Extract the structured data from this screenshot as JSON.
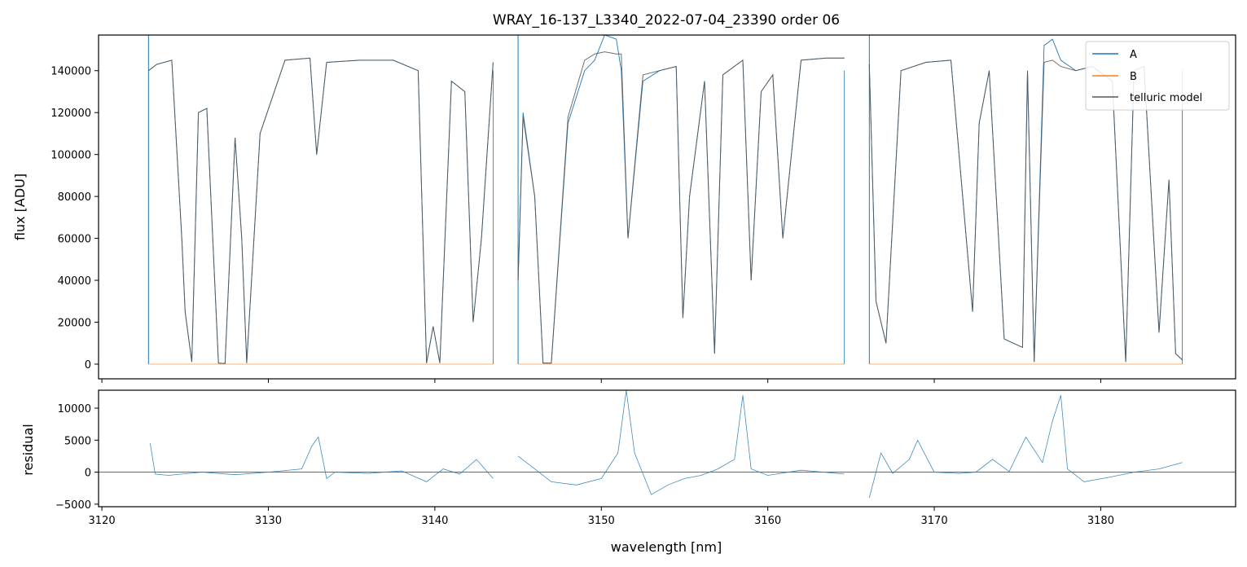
{
  "chart_data": [
    {
      "type": "line",
      "title": "WRAY_16-137_L3340_2022-07-04_23390  order 06",
      "xlabel": "",
      "ylabel": "flux [ADU]",
      "xlim": [
        3119.8,
        3188.1
      ],
      "ylim": [
        -7000,
        157000
      ],
      "yticks": [
        0,
        20000,
        40000,
        60000,
        80000,
        100000,
        120000,
        140000
      ],
      "xticks": [
        3120,
        3130,
        3140,
        3150,
        3160,
        3170,
        3180
      ],
      "legend": "top-right",
      "colors": {
        "A": "#1f77b4",
        "B": "#ff7f0e",
        "telluric model": "#555555"
      },
      "segments": [
        [
          3122.8,
          3143.5
        ],
        [
          3145.0,
          3164.6
        ],
        [
          3166.1,
          3184.9
        ]
      ],
      "series": [
        {
          "name": "A",
          "x": [
            3122.8,
            3123.3,
            3124.2,
            3124.8,
            3125.0,
            3125.4,
            3125.8,
            3126.3,
            3127.0,
            3127.4,
            3128.0,
            3128.4,
            3128.7,
            3129.5,
            3131.0,
            3132.5,
            3132.9,
            3133.5,
            3135.5,
            3137.5,
            3139.0,
            3139.5,
            3139.9,
            3140.3,
            3141.0,
            3141.8,
            3142.3,
            3142.8,
            3143.5,
            3145.0,
            3145.3,
            3146.0,
            3146.5,
            3147.0,
            3148.0,
            3149.0,
            3149.6,
            3150.2,
            3150.9,
            3151.2,
            3151.6,
            3152.5,
            3153.5,
            3154.5,
            3154.9,
            3155.3,
            3156.2,
            3156.8,
            3157.3,
            3158.5,
            3159.0,
            3159.6,
            3160.3,
            3160.9,
            3162.0,
            3163.5,
            3164.6,
            3166.1,
            3166.5,
            3167.1,
            3168.0,
            3169.5,
            3171.0,
            3172.3,
            3172.7,
            3173.3,
            3174.2,
            3175.3,
            3175.6,
            3176.0,
            3176.6,
            3177.1,
            3177.6,
            3178.5,
            3179.5,
            3180.7,
            3181.5,
            3182.0,
            3182.6,
            3183.5,
            3184.1,
            3184.5,
            3184.9
          ],
          "y": [
            140000,
            143000,
            145000,
            60000,
            25000,
            1000,
            120000,
            122000,
            500,
            300,
            108000,
            60000,
            500,
            110000,
            145000,
            146000,
            100000,
            144000,
            145000,
            145000,
            140000,
            500,
            18000,
            500,
            135000,
            130000,
            20000,
            60000,
            144000,
            40000,
            120000,
            80000,
            500,
            500,
            115000,
            140000,
            145000,
            160000,
            155000,
            140000,
            60000,
            135000,
            140000,
            142000,
            22000,
            80000,
            135000,
            5000,
            138000,
            145000,
            40000,
            130000,
            138000,
            60000,
            145000,
            146000,
            146000,
            143000,
            30000,
            10000,
            140000,
            144000,
            145000,
            25000,
            115000,
            140000,
            12000,
            8000,
            140000,
            1000,
            152000,
            155000,
            145000,
            140000,
            142000,
            135000,
            1000,
            140000,
            142000,
            15000,
            88000,
            5000,
            2000
          ]
        },
        {
          "name": "B",
          "x": [
            3122.8,
            3143.5,
            3145.0,
            3164.6,
            3166.1,
            3184.9
          ],
          "y": [
            0,
            0,
            0,
            0,
            0,
            0
          ]
        },
        {
          "name": "telluric model",
          "x": [
            3122.8,
            3123.3,
            3124.2,
            3124.8,
            3125.0,
            3125.4,
            3125.8,
            3126.3,
            3127.0,
            3127.4,
            3128.0,
            3128.4,
            3128.7,
            3129.5,
            3131.0,
            3132.5,
            3132.9,
            3133.5,
            3135.5,
            3137.5,
            3139.0,
            3139.5,
            3139.9,
            3140.3,
            3141.0,
            3141.8,
            3142.3,
            3142.8,
            3143.5,
            3145.0,
            3145.3,
            3146.0,
            3146.5,
            3147.0,
            3148.0,
            3149.0,
            3149.6,
            3150.2,
            3150.9,
            3151.2,
            3151.6,
            3152.5,
            3153.5,
            3154.5,
            3154.9,
            3155.3,
            3156.2,
            3156.8,
            3157.3,
            3158.5,
            3159.0,
            3159.6,
            3160.3,
            3160.9,
            3162.0,
            3163.5,
            3164.6,
            3166.1,
            3166.5,
            3167.1,
            3168.0,
            3169.5,
            3171.0,
            3172.3,
            3172.7,
            3173.3,
            3174.2,
            3175.3,
            3175.6,
            3176.0,
            3176.6,
            3177.1,
            3177.6,
            3178.5,
            3179.5,
            3180.7,
            3181.5,
            3182.0,
            3182.6,
            3183.5,
            3184.1,
            3184.5,
            3184.9
          ],
          "y": [
            140000,
            143000,
            145000,
            60000,
            25000,
            1000,
            120000,
            122000,
            500,
            300,
            108000,
            60000,
            500,
            110000,
            145000,
            146000,
            100000,
            144000,
            145000,
            145000,
            140000,
            500,
            18000,
            500,
            135000,
            130000,
            20000,
            60000,
            144000,
            40000,
            118000,
            80000,
            500,
            500,
            118000,
            145000,
            148000,
            149000,
            148000,
            148000,
            60000,
            138000,
            140000,
            142000,
            22000,
            80000,
            135000,
            5000,
            138000,
            145000,
            40000,
            130000,
            138000,
            60000,
            145000,
            146000,
            146000,
            143000,
            30000,
            10000,
            140000,
            144000,
            145000,
            25000,
            115000,
            140000,
            12000,
            8000,
            140000,
            1000,
            144000,
            145000,
            142000,
            140000,
            142000,
            135000,
            1000,
            140000,
            142000,
            15000,
            88000,
            5000,
            2000
          ]
        }
      ]
    },
    {
      "type": "line",
      "title": "",
      "xlabel": "wavelength [nm]",
      "ylabel": "residual",
      "xlim": [
        3119.8,
        3188.1
      ],
      "ylim": [
        -5400,
        12800
      ],
      "yticks": [
        -5000,
        0,
        5000,
        10000
      ],
      "xticks": [
        3120,
        3130,
        3140,
        3150,
        3160,
        3170,
        3180
      ],
      "reference_line": 0,
      "series": [
        {
          "name": "",
          "x": [
            3122.9,
            3123.2,
            3124.0,
            3126.0,
            3128.0,
            3130.0,
            3132.0,
            3132.6,
            3133.0,
            3133.5,
            3134.0,
            3136.0,
            3138.0,
            3139.5,
            3140.5,
            3141.5,
            3142.5,
            3143.5,
            3145.0,
            3146.0,
            3147.0,
            3148.5,
            3150.0,
            3151.0,
            3151.5,
            3152.0,
            3153.0,
            3154.0,
            3155.0,
            3156.0,
            3157.0,
            3158.0,
            3158.5,
            3159.0,
            3160.0,
            3162.0,
            3164.6,
            3166.1,
            3166.8,
            3167.5,
            3168.5,
            3169.0,
            3170.0,
            3171.5,
            3172.5,
            3173.5,
            3174.5,
            3175.5,
            3176.5,
            3177.1,
            3177.6,
            3178.0,
            3179.0,
            3180.5,
            3182.0,
            3183.5,
            3184.9
          ],
          "y": [
            4500,
            -300,
            -500,
            0,
            -400,
            0,
            500,
            4000,
            5500,
            -1000,
            0,
            -200,
            200,
            -1500,
            500,
            -300,
            2000,
            -1000,
            2500,
            500,
            -1500,
            -2000,
            -1000,
            3000,
            12800,
            3000,
            -3500,
            -2000,
            -1000,
            -500,
            500,
            2000,
            12000,
            500,
            -500,
            300,
            -300,
            -4000,
            3000,
            -200,
            2000,
            5000,
            0,
            -200,
            0,
            2000,
            100,
            5500,
            1500,
            8000,
            12000,
            500,
            -1500,
            -800,
            0,
            500,
            1500
          ]
        }
      ]
    }
  ]
}
